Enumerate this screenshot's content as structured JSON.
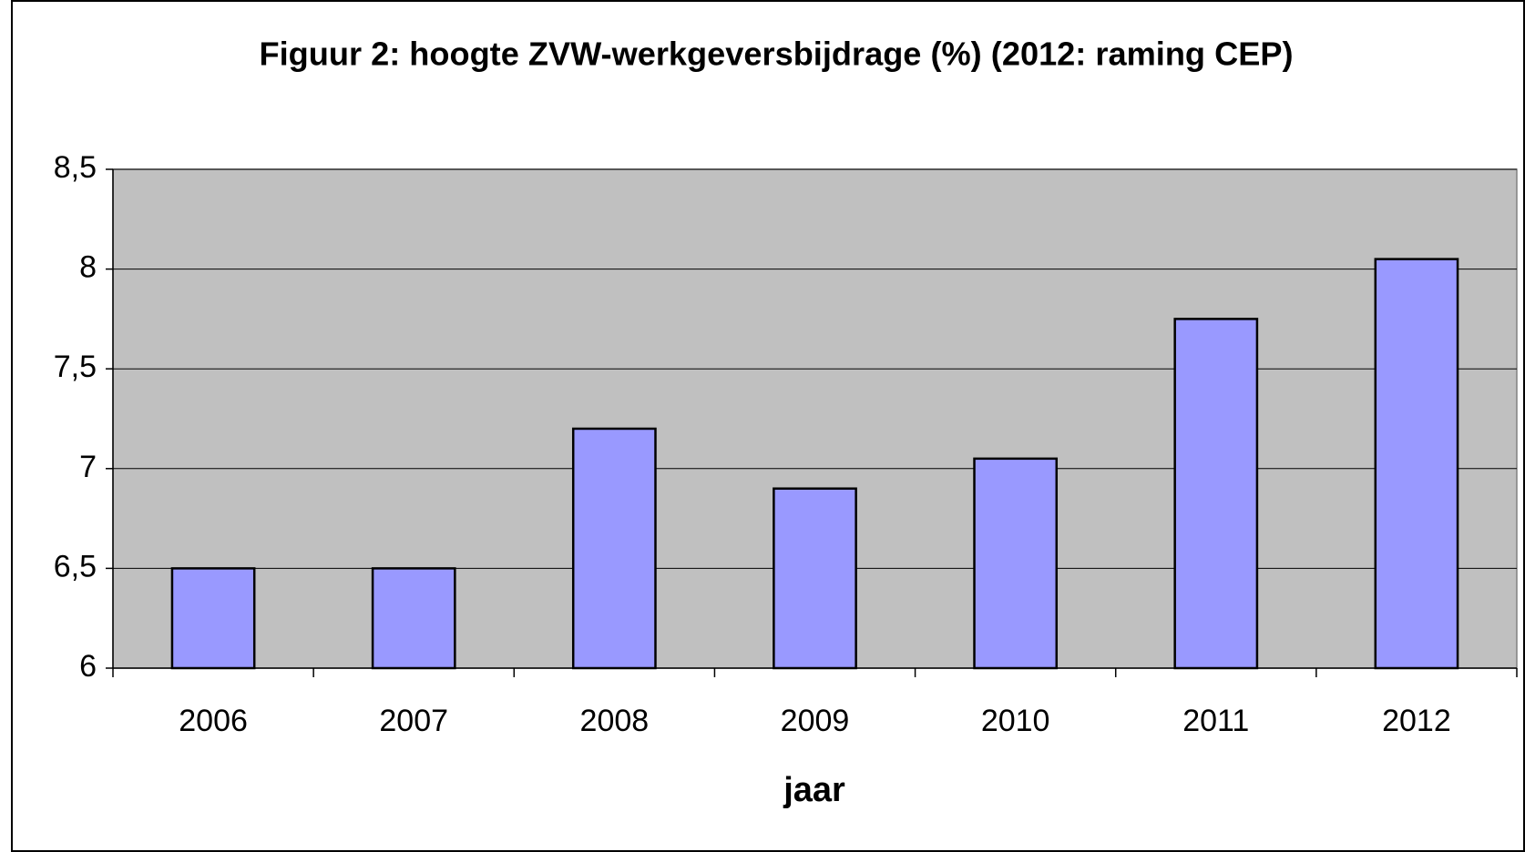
{
  "chart_data": {
    "type": "bar",
    "title": "Figuur 2: hoogte ZVW-werkgeversbijdrage (%) (2012: raming CEP)",
    "x_label": "jaar",
    "categories": [
      "2006",
      "2007",
      "2008",
      "2009",
      "2010",
      "2011",
      "2012"
    ],
    "values": [
      6.5,
      6.5,
      7.2,
      6.9,
      7.05,
      7.75,
      8.05
    ],
    "color": "#9999ff",
    "ylim": [
      6,
      8.5
    ],
    "yticks": [
      6,
      {
        "value": 6.5,
        "label": "6,5"
      },
      7,
      {
        "value": 7.5,
        "label": "7,5"
      },
      8,
      {
        "value": 8.5,
        "label": "8,5"
      }
    ],
    "grid": true
  }
}
